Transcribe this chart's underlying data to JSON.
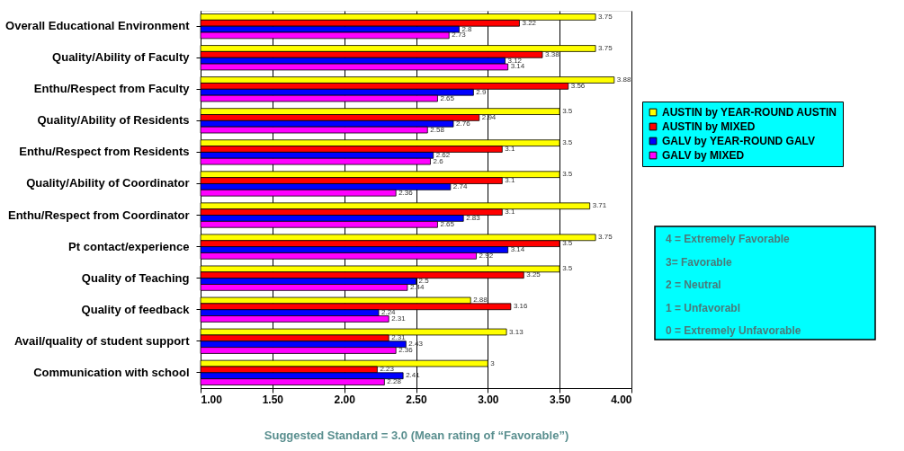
{
  "chart_data": {
    "type": "bar",
    "orientation": "horizontal",
    "xlabel": "Suggested Standard = 3.0 (Mean rating of “Favorable”)",
    "categories": [
      "Overall Educational Environment",
      "Quality/Ability of Faculty",
      "Enthu/Respect from Faculty",
      "Quality/Ability of Residents",
      "Enthu/Respect from Residents",
      "Quality/Ability of Coordinator",
      "Enthu/Respect from Coordinator",
      "Pt contact/experience",
      "Quality of Teaching",
      "Quality of feedback",
      "Avail/quality of student support",
      "Communication with school"
    ],
    "series": [
      {
        "name": "AUSTIN by YEAR-ROUND AUSTIN",
        "color": "#ffff00",
        "values": [
          3.75,
          3.75,
          3.88,
          3.5,
          3.5,
          3.5,
          3.71,
          3.75,
          3.5,
          2.88,
          3.13,
          3
        ]
      },
      {
        "name": "AUSTIN by MIXED",
        "color": "#ff0000",
        "values": [
          3.22,
          3.38,
          3.56,
          2.94,
          3.1,
          3.1,
          3.1,
          3.5,
          3.25,
          3.16,
          2.31,
          2.23
        ]
      },
      {
        "name": "GALV by YEAR-ROUND GALV",
        "color": "#0000ff",
        "values": [
          2.8,
          3.12,
          2.9,
          2.76,
          2.62,
          2.74,
          2.83,
          3.14,
          2.5,
          2.24,
          2.43,
          2.41
        ]
      },
      {
        "name": "GALV by MIXED",
        "color": "#ff00ff",
        "values": [
          2.73,
          3.14,
          2.65,
          2.58,
          2.6,
          2.36,
          2.65,
          2.92,
          2.44,
          2.31,
          2.36,
          2.28
        ]
      }
    ],
    "xlim": [
      1,
      4
    ],
    "xticks": [
      {
        "value": 1,
        "label": "1.00"
      },
      {
        "value": 1.5,
        "label": "1.50"
      },
      {
        "value": 2,
        "label": "2.00"
      },
      {
        "value": 2.5,
        "label": "2.50"
      },
      {
        "value": 3,
        "label": "3.00"
      },
      {
        "value": 3.5,
        "label": "3.50"
      },
      {
        "value": 4,
        "label": "4.00"
      }
    ],
    "grid": "x",
    "legend": "right",
    "data_labels": true,
    "annotations": [
      "4 = Extremely Favorable",
      "3= Favorable",
      "2 = Neutral",
      "1 = Unfavorabl",
      "0 = Extremely Unfavorable"
    ]
  }
}
